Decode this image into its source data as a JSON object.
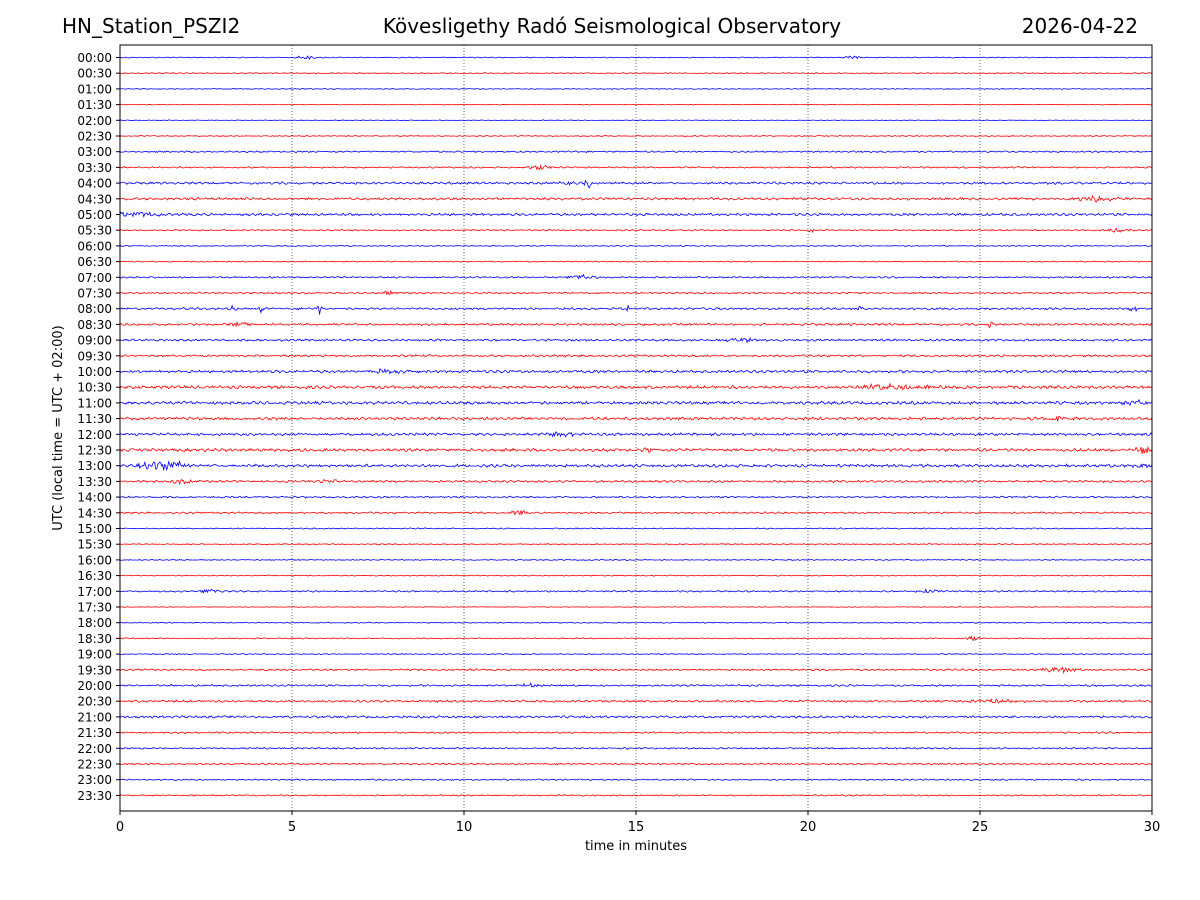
{
  "header": {
    "station": "HN_Station_PSZI2",
    "observatory": "Kövesligethy Radó Seismological Observatory",
    "date": "2026-04-22"
  },
  "chart_data": {
    "type": "line",
    "title": "Kövesligethy Radó Seismological Observatory",
    "xlabel": "time in minutes",
    "ylabel": "UTC (local time = UTC + 02:00)",
    "xlim": [
      0,
      30
    ],
    "xticks": [
      "0",
      "5",
      "10",
      "15",
      "20",
      "25",
      "30"
    ],
    "grid": "vertical dotted lines at 5, 10, 15, 20, 25 minutes",
    "colors": {
      "even": "#0000ff",
      "odd": "#ff0000",
      "grid": "#000000"
    },
    "rows": [
      {
        "label": "00:00",
        "noise": 0.6,
        "events": [
          {
            "t": 5.4,
            "amp": 1.6,
            "dur": 0.6
          },
          {
            "t": 21.3,
            "amp": 1.6,
            "dur": 0.3
          }
        ]
      },
      {
        "label": "00:30",
        "noise": 0.6,
        "events": []
      },
      {
        "label": "01:00",
        "noise": 0.5,
        "events": []
      },
      {
        "label": "01:30",
        "noise": 0.4,
        "events": []
      },
      {
        "label": "02:00",
        "noise": 0.4,
        "events": []
      },
      {
        "label": "02:30",
        "noise": 0.6,
        "events": []
      },
      {
        "label": "03:00",
        "noise": 0.9,
        "events": []
      },
      {
        "label": "03:30",
        "noise": 0.9,
        "events": [
          {
            "t": 12.2,
            "amp": 2.5,
            "dur": 0.5
          }
        ]
      },
      {
        "label": "04:00",
        "noise": 1.3,
        "events": [
          {
            "t": 13.6,
            "amp": 7,
            "dur": 0.15
          },
          {
            "t": 13.0,
            "amp": 2,
            "dur": 0.4
          }
        ]
      },
      {
        "label": "04:30",
        "noise": 1.4,
        "events": [
          {
            "t": 28.3,
            "amp": 2.5,
            "dur": 1.2
          }
        ]
      },
      {
        "label": "05:00",
        "noise": 1.4,
        "events": [
          {
            "t": 0.5,
            "amp": 2.5,
            "dur": 1.2
          }
        ]
      },
      {
        "label": "05:30",
        "noise": 0.8,
        "events": [
          {
            "t": 20.1,
            "amp": 4,
            "dur": 0.1
          },
          {
            "t": 29.0,
            "amp": 2,
            "dur": 0.6
          }
        ]
      },
      {
        "label": "06:00",
        "noise": 0.6,
        "events": []
      },
      {
        "label": "06:30",
        "noise": 0.6,
        "events": []
      },
      {
        "label": "07:00",
        "noise": 0.9,
        "events": [
          {
            "t": 13.4,
            "amp": 3,
            "dur": 0.6
          }
        ]
      },
      {
        "label": "07:30",
        "noise": 0.9,
        "events": [
          {
            "t": 7.8,
            "amp": 2,
            "dur": 0.4
          }
        ]
      },
      {
        "label": "08:00",
        "noise": 1.2,
        "events": [
          {
            "t": 3.3,
            "amp": 4,
            "dur": 0.1
          },
          {
            "t": 4.1,
            "amp": 4,
            "dur": 0.1
          },
          {
            "t": 5.8,
            "amp": 6,
            "dur": 0.1
          },
          {
            "t": 14.8,
            "amp": 6,
            "dur": 0.1
          },
          {
            "t": 21.5,
            "amp": 4,
            "dur": 0.1
          },
          {
            "t": 29.5,
            "amp": 2.5,
            "dur": 0.5
          }
        ]
      },
      {
        "label": "08:30",
        "noise": 1.2,
        "events": [
          {
            "t": 3.5,
            "amp": 2.5,
            "dur": 0.5
          },
          {
            "t": 25.3,
            "amp": 4,
            "dur": 0.1
          }
        ]
      },
      {
        "label": "09:00",
        "noise": 1.2,
        "events": [
          {
            "t": 18.0,
            "amp": 2,
            "dur": 1
          }
        ]
      },
      {
        "label": "09:30",
        "noise": 1.2,
        "events": []
      },
      {
        "label": "10:00",
        "noise": 1.5,
        "events": [
          {
            "t": 7.8,
            "amp": 2,
            "dur": 1
          }
        ]
      },
      {
        "label": "10:30",
        "noise": 1.7,
        "events": [
          {
            "t": 22.5,
            "amp": 2.8,
            "dur": 1.5
          }
        ]
      },
      {
        "label": "11:00",
        "noise": 1.7,
        "events": [
          {
            "t": 29.5,
            "amp": 2.5,
            "dur": 0.5
          }
        ]
      },
      {
        "label": "11:30",
        "noise": 1.7,
        "events": [
          {
            "t": 27.3,
            "amp": 2.5,
            "dur": 0.6
          }
        ]
      },
      {
        "label": "12:00",
        "noise": 1.5,
        "events": [
          {
            "t": 12.8,
            "amp": 2.8,
            "dur": 0.6
          }
        ]
      },
      {
        "label": "12:30",
        "noise": 1.7,
        "events": [
          {
            "t": 29.8,
            "amp": 5,
            "dur": 0.4
          },
          {
            "t": 15.4,
            "amp": 3,
            "dur": 0.2
          }
        ]
      },
      {
        "label": "13:00",
        "noise": 1.7,
        "events": [
          {
            "t": 1.3,
            "amp": 6,
            "dur": 1
          },
          {
            "t": 29.7,
            "amp": 2.5,
            "dur": 0.5
          }
        ]
      },
      {
        "label": "13:30",
        "noise": 1.2,
        "events": [
          {
            "t": 1.8,
            "amp": 2.5,
            "dur": 0.5
          },
          {
            "t": 6.2,
            "amp": 2,
            "dur": 0.5
          }
        ]
      },
      {
        "label": "14:00",
        "noise": 1.0,
        "events": []
      },
      {
        "label": "14:30",
        "noise": 1.0,
        "events": [
          {
            "t": 11.6,
            "amp": 3,
            "dur": 0.4
          }
        ]
      },
      {
        "label": "15:00",
        "noise": 0.7,
        "events": []
      },
      {
        "label": "15:30",
        "noise": 0.7,
        "events": []
      },
      {
        "label": "16:00",
        "noise": 0.6,
        "events": []
      },
      {
        "label": "16:30",
        "noise": 0.6,
        "events": []
      },
      {
        "label": "17:00",
        "noise": 0.9,
        "events": [
          {
            "t": 2.6,
            "amp": 2,
            "dur": 0.5
          },
          {
            "t": 23.5,
            "amp": 2,
            "dur": 0.5
          }
        ]
      },
      {
        "label": "17:30",
        "noise": 0.4,
        "events": []
      },
      {
        "label": "18:00",
        "noise": 0.6,
        "events": []
      },
      {
        "label": "18:30",
        "noise": 0.6,
        "events": [
          {
            "t": 24.8,
            "amp": 2.5,
            "dur": 0.3
          }
        ]
      },
      {
        "label": "19:00",
        "noise": 0.6,
        "events": []
      },
      {
        "label": "19:30",
        "noise": 1.0,
        "events": [
          {
            "t": 27.3,
            "amp": 3,
            "dur": 0.8
          }
        ]
      },
      {
        "label": "20:00",
        "noise": 1.0,
        "events": [
          {
            "t": 12.0,
            "amp": 2,
            "dur": 0.5
          }
        ]
      },
      {
        "label": "20:30",
        "noise": 1.2,
        "events": [
          {
            "t": 25.5,
            "amp": 2,
            "dur": 1.2
          }
        ]
      },
      {
        "label": "21:00",
        "noise": 1.3,
        "events": []
      },
      {
        "label": "21:30",
        "noise": 0.9,
        "events": []
      },
      {
        "label": "22:00",
        "noise": 0.9,
        "events": []
      },
      {
        "label": "22:30",
        "noise": 0.9,
        "events": []
      },
      {
        "label": "23:00",
        "noise": 0.8,
        "events": []
      },
      {
        "label": "23:30",
        "noise": 0.8,
        "events": []
      }
    ]
  }
}
